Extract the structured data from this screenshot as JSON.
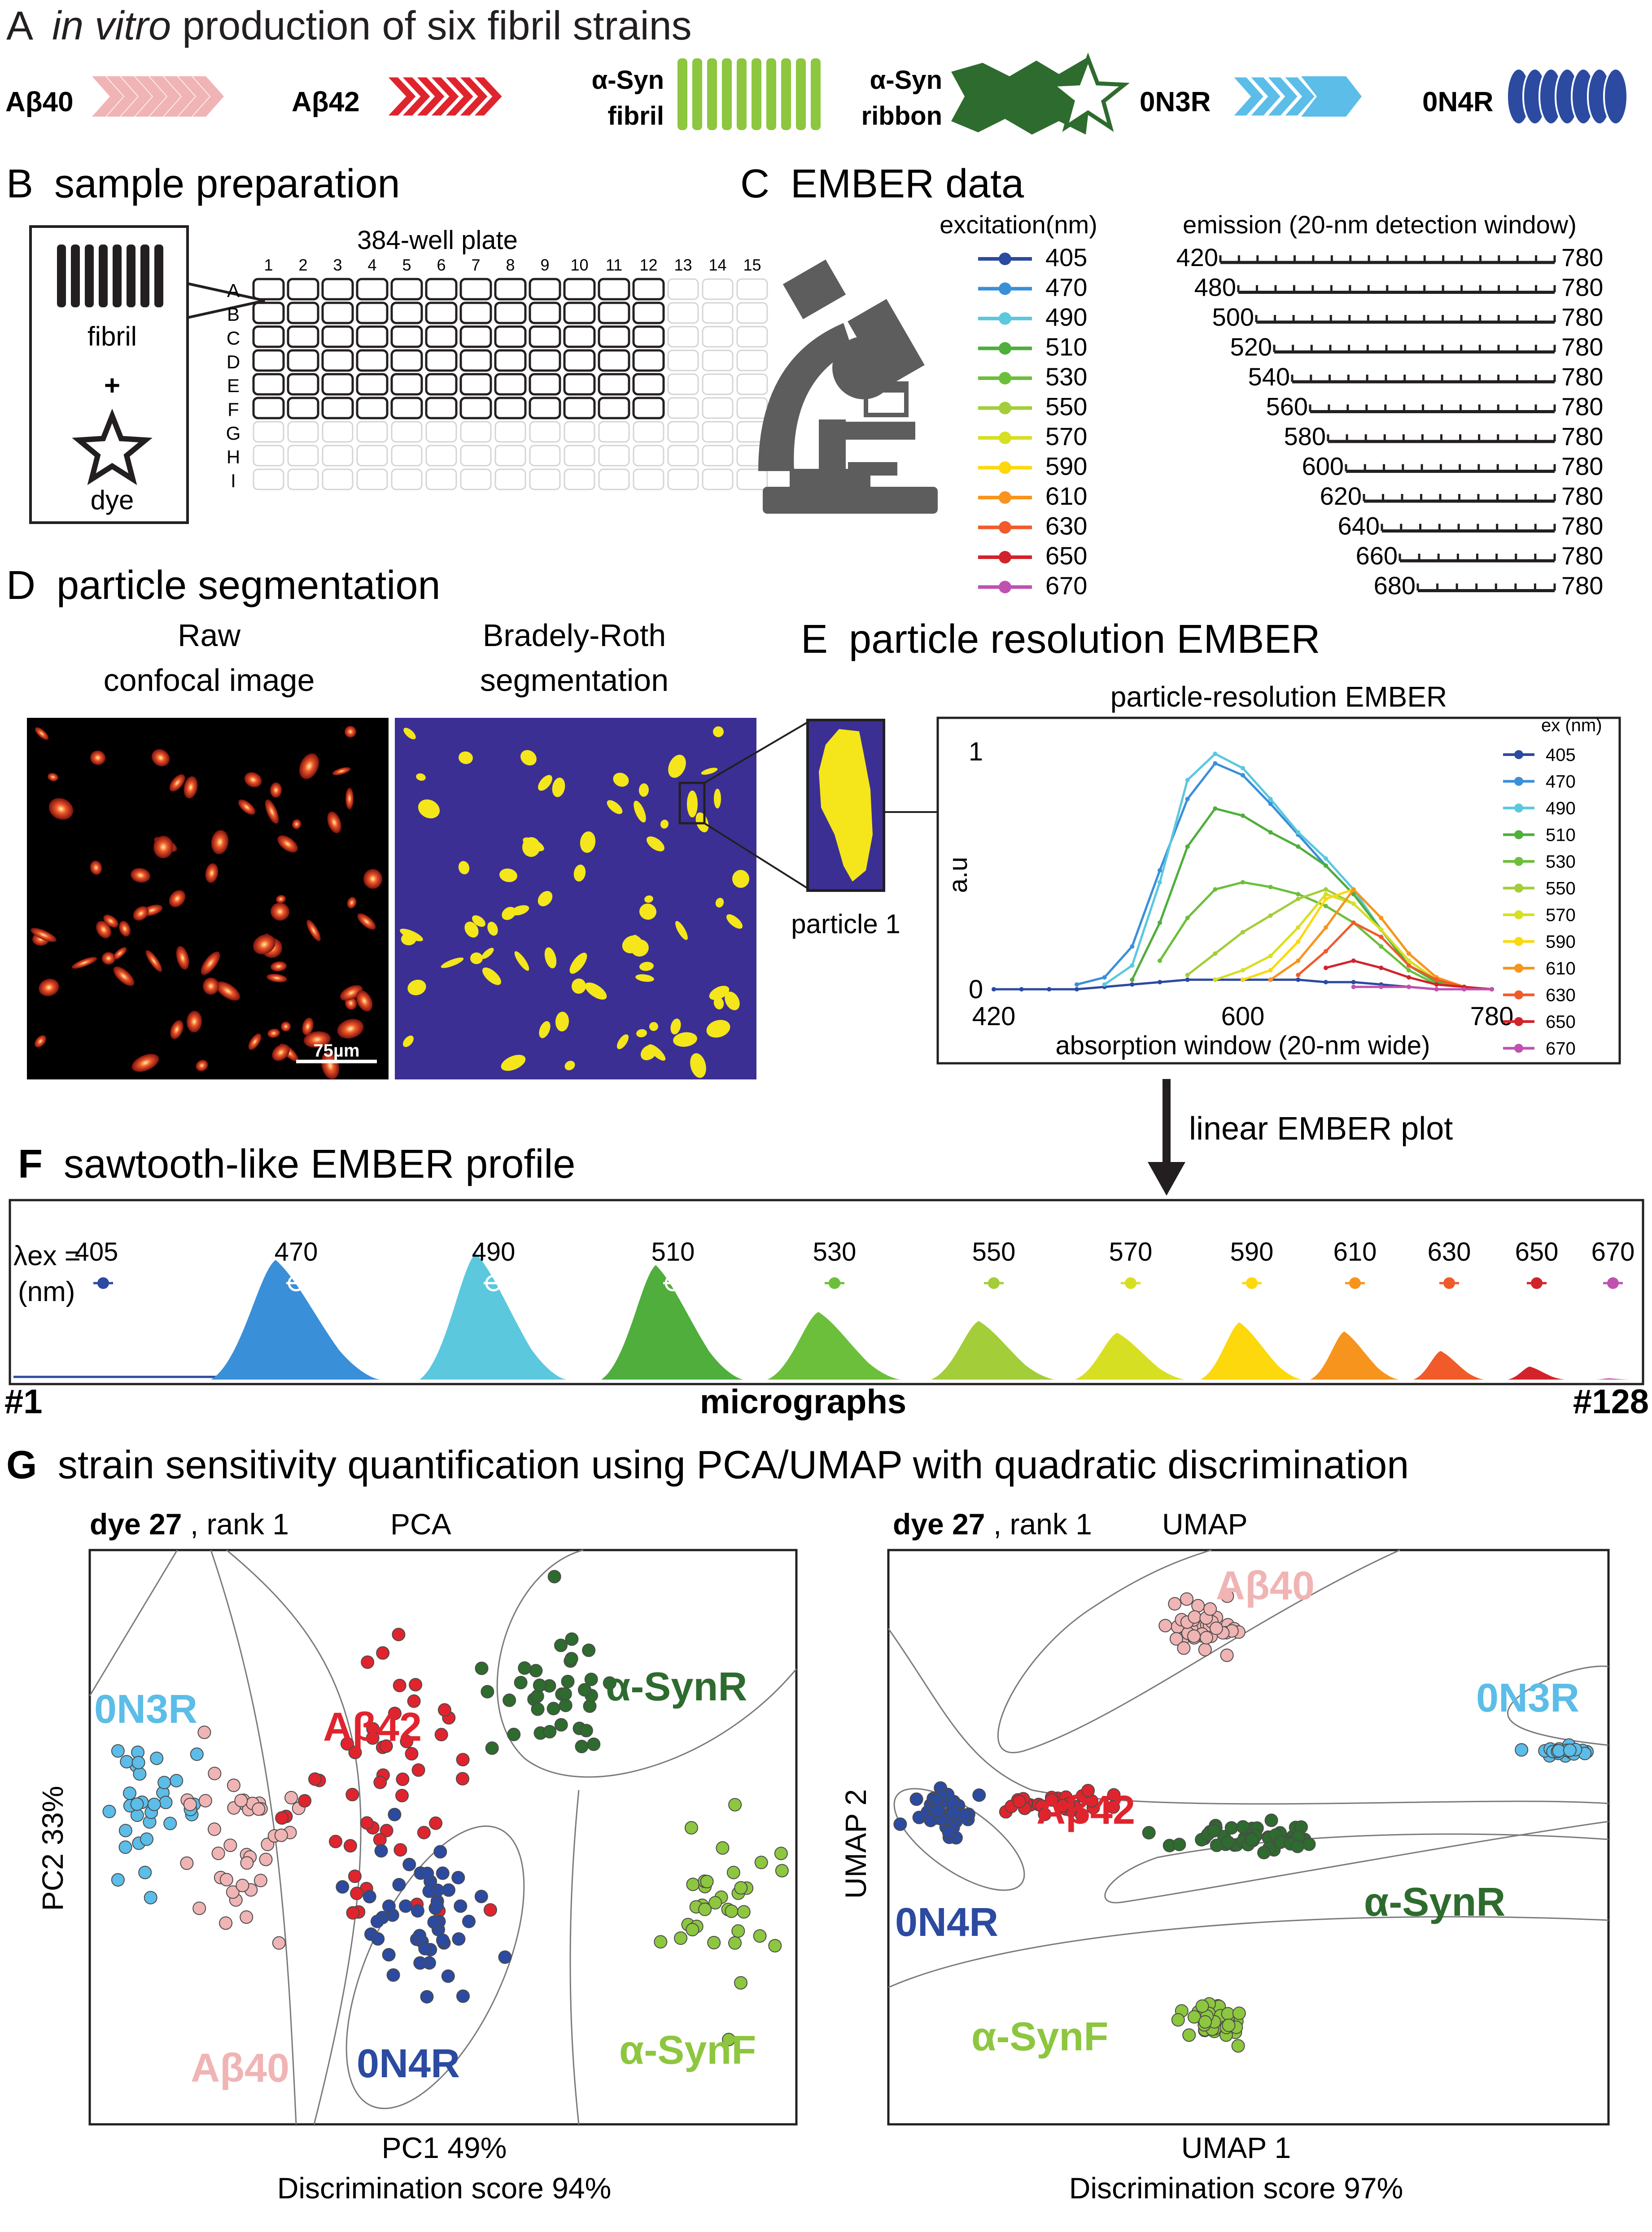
{
  "panelA": {
    "letter": "A",
    "title_italic": "in vitro",
    "title_rest": " production of six fibril strains",
    "strains": [
      {
        "label": "Aβ40",
        "color": "#f0b4b4"
      },
      {
        "label": "Aβ42",
        "color": "#e0242e"
      },
      {
        "label_line1": "α-Syn",
        "label_line2": "fibril",
        "color": "#8dc63f"
      },
      {
        "label_line1": "α-Syn",
        "label_line2": "ribbon",
        "color": "#2e6b2e"
      },
      {
        "label": "0N3R",
        "color": "#5bbde8"
      },
      {
        "label": "0N4R",
        "color": "#2b4aa0"
      }
    ]
  },
  "panelB": {
    "letter": "B",
    "title": "sample preparation",
    "plate_title": "384-well plate",
    "fibril_label": "fibril",
    "plus": "+",
    "dye_label": "dye",
    "columns": [
      "1",
      "2",
      "3",
      "4",
      "5",
      "6",
      "7",
      "8",
      "9",
      "10",
      "11",
      "12",
      "13",
      "14",
      "15"
    ],
    "rows": [
      "A",
      "B",
      "C",
      "D",
      "E",
      "F",
      "G",
      "H",
      "I"
    ]
  },
  "panelC": {
    "letter": "C",
    "title": "EMBER data",
    "excitation_header": "excitation(nm)",
    "emission_header": "emission (20-nm detection window)",
    "end_label": "780",
    "channels": [
      {
        "ex": "405",
        "em_start": "420",
        "color": "#2b4aa0"
      },
      {
        "ex": "470",
        "em_start": "480",
        "color": "#3a8fd9"
      },
      {
        "ex": "490",
        "em_start": "500",
        "color": "#5bc8de"
      },
      {
        "ex": "510",
        "em_start": "520",
        "color": "#4fae3c"
      },
      {
        "ex": "530",
        "em_start": "540",
        "color": "#6cbf3b"
      },
      {
        "ex": "550",
        "em_start": "560",
        "color": "#a3cd39"
      },
      {
        "ex": "570",
        "em_start": "580",
        "color": "#d7df23"
      },
      {
        "ex": "590",
        "em_start": "600",
        "color": "#fcd80c"
      },
      {
        "ex": "610",
        "em_start": "620",
        "color": "#f7941d"
      },
      {
        "ex": "630",
        "em_start": "640",
        "color": "#f15a29"
      },
      {
        "ex": "650",
        "em_start": "660",
        "color": "#d2232a"
      },
      {
        "ex": "670",
        "em_start": "680",
        "color": "#c051b0"
      }
    ]
  },
  "panelD": {
    "letter": "D",
    "title": "particle segmentation",
    "raw_line1": "Raw",
    "raw_line2": "confocal image",
    "seg_line1": "Bradely-Roth",
    "seg_line2": "segmentation",
    "scale_bar": "75µm",
    "particle_label": "particle 1"
  },
  "panelE": {
    "letter": "E",
    "title": "particle resolution EMBER",
    "chart_title": "particle-resolution EMBER",
    "legend_title": "ex (nm)",
    "arrow_label": "linear EMBER plot"
  },
  "panelF": {
    "letter": "F",
    "title": "sawtooth-like EMBER profile",
    "lambda_label": "λex =",
    "nm_label": "(nm)",
    "left_label": "#1",
    "center_label": "micrographs",
    "right_label": "#128"
  },
  "panelG": {
    "letter": "G",
    "title": "strain sensitivity quantification using PCA/UMAP with quadratic discrimination",
    "pca": {
      "dye": "dye 27",
      "rank": ", rank 1",
      "method": "PCA",
      "ylabel": "PC2 33%",
      "xlabel": "PC1 49%",
      "score": "Discrimination score 94%"
    },
    "umap": {
      "dye": "dye 27",
      "rank": ", rank 1",
      "method": "UMAP",
      "ylabel": "UMAP 2",
      "xlabel": "UMAP 1",
      "score": "Discrimination score 97%"
    }
  },
  "chart_data": [
    {
      "type": "line",
      "title": "particle-resolution EMBER",
      "xlabel": "absorption window (20-nm wide)",
      "ylabel": "a.u",
      "x_ticks": [
        420,
        600,
        780
      ],
      "y_ticks": [
        0,
        1
      ],
      "xlim": [
        420,
        780
      ],
      "ylim": [
        0,
        1
      ],
      "grid": false,
      "legend": "right",
      "legend_title": "ex (nm)",
      "series": [
        {
          "name": "405",
          "color": "#2b4aa0",
          "x": [
            420,
            440,
            460,
            480,
            500,
            520,
            540,
            560,
            580,
            600,
            620,
            640,
            660,
            680,
            700,
            720,
            740,
            760,
            780
          ],
          "y": [
            0,
            0,
            0,
            0,
            0.01,
            0.02,
            0.03,
            0.04,
            0.04,
            0.04,
            0.04,
            0.04,
            0.03,
            0.03,
            0.02,
            0.01,
            0,
            0,
            0
          ]
        },
        {
          "name": "470",
          "color": "#3a8fd9",
          "x": [
            480,
            500,
            520,
            540,
            560,
            580,
            600,
            620,
            640,
            660,
            680,
            700,
            720,
            740,
            760,
            780
          ],
          "y": [
            0.02,
            0.05,
            0.18,
            0.5,
            0.8,
            0.95,
            0.9,
            0.78,
            0.65,
            0.52,
            0.4,
            0.25,
            0.1,
            0.03,
            0.01,
            0
          ]
        },
        {
          "name": "490",
          "color": "#5bc8de",
          "x": [
            500,
            520,
            540,
            560,
            580,
            600,
            620,
            640,
            660,
            680,
            700,
            720,
            740,
            760,
            780
          ],
          "y": [
            0.02,
            0.1,
            0.45,
            0.88,
            0.99,
            0.93,
            0.8,
            0.66,
            0.55,
            0.42,
            0.25,
            0.1,
            0.03,
            0.01,
            0
          ]
        },
        {
          "name": "510",
          "color": "#4fae3c",
          "x": [
            520,
            540,
            560,
            580,
            600,
            620,
            640,
            660,
            680,
            700,
            720,
            740,
            760,
            780
          ],
          "y": [
            0.04,
            0.28,
            0.6,
            0.76,
            0.73,
            0.66,
            0.6,
            0.52,
            0.4,
            0.25,
            0.1,
            0.03,
            0.01,
            0
          ]
        },
        {
          "name": "530",
          "color": "#6cbf3b",
          "x": [
            540,
            560,
            580,
            600,
            620,
            640,
            660,
            680,
            700,
            720,
            740,
            760,
            780
          ],
          "y": [
            0.12,
            0.3,
            0.42,
            0.45,
            0.43,
            0.4,
            0.35,
            0.28,
            0.18,
            0.08,
            0.02,
            0.01,
            0
          ]
        },
        {
          "name": "550",
          "color": "#a3cd39",
          "x": [
            560,
            580,
            600,
            620,
            640,
            660,
            680,
            700,
            720,
            740,
            760,
            780
          ],
          "y": [
            0.06,
            0.15,
            0.24,
            0.31,
            0.38,
            0.42,
            0.36,
            0.25,
            0.12,
            0.04,
            0.01,
            0
          ]
        },
        {
          "name": "570",
          "color": "#d7df23",
          "x": [
            580,
            600,
            620,
            640,
            660,
            680,
            700,
            720,
            740,
            760,
            780
          ],
          "y": [
            0.04,
            0.08,
            0.14,
            0.26,
            0.4,
            0.36,
            0.25,
            0.12,
            0.04,
            0.01,
            0
          ]
        },
        {
          "name": "590",
          "color": "#fcd80c",
          "x": [
            600,
            620,
            640,
            660,
            680,
            700,
            720,
            740,
            760,
            780
          ],
          "y": [
            0.04,
            0.08,
            0.2,
            0.38,
            0.42,
            0.3,
            0.15,
            0.05,
            0.01,
            0
          ]
        },
        {
          "name": "610",
          "color": "#f7941d",
          "x": [
            620,
            640,
            660,
            680,
            700,
            720,
            740,
            760,
            780
          ],
          "y": [
            0.04,
            0.12,
            0.26,
            0.42,
            0.3,
            0.15,
            0.05,
            0.01,
            0
          ]
        },
        {
          "name": "630",
          "color": "#f15a29",
          "x": [
            640,
            660,
            680,
            700,
            720,
            740,
            760,
            780
          ],
          "y": [
            0.06,
            0.16,
            0.28,
            0.22,
            0.1,
            0.04,
            0.01,
            0
          ]
        },
        {
          "name": "650",
          "color": "#d2232a",
          "x": [
            660,
            680,
            700,
            720,
            740,
            760,
            780
          ],
          "y": [
            0.09,
            0.12,
            0.09,
            0.05,
            0.02,
            0.01,
            0
          ]
        },
        {
          "name": "670",
          "color": "#c051b0",
          "x": [
            680,
            700,
            720,
            740,
            760,
            780
          ],
          "y": [
            0.01,
            0.01,
            0.01,
            0,
            0,
            0
          ]
        }
      ]
    },
    {
      "type": "area",
      "title": "sawtooth-like EMBER profile",
      "xlabel": "micrographs",
      "x_start_label": "#1",
      "x_end_label": "#128",
      "series": [
        {
          "name": "405",
          "color": "#2b4aa0",
          "relative_peak": 0.03
        },
        {
          "name": "470",
          "color": "#3a8fd9",
          "relative_peak": 0.92
        },
        {
          "name": "490",
          "color": "#5bc8de",
          "relative_peak": 0.97
        },
        {
          "name": "510",
          "color": "#4fae3c",
          "relative_peak": 0.88
        },
        {
          "name": "530",
          "color": "#6cbf3b",
          "relative_peak": 0.52
        },
        {
          "name": "550",
          "color": "#a3cd39",
          "relative_peak": 0.45
        },
        {
          "name": "570",
          "color": "#d7df23",
          "relative_peak": 0.36
        },
        {
          "name": "590",
          "color": "#fcd80c",
          "relative_peak": 0.44
        },
        {
          "name": "610",
          "color": "#f7941d",
          "relative_peak": 0.37
        },
        {
          "name": "630",
          "color": "#f15a29",
          "relative_peak": 0.22
        },
        {
          "name": "650",
          "color": "#d2232a",
          "relative_peak": 0.1
        },
        {
          "name": "670",
          "color": "#c051b0",
          "relative_peak": 0.01
        }
      ]
    },
    {
      "type": "scatter",
      "title": "PCA",
      "xlabel": "PC1 49%",
      "ylabel": "PC2 33%",
      "series": [
        {
          "name": "0N3R",
          "color": "#5bbde8",
          "cx": 0.08,
          "cy": 0.42,
          "sx": 0.035,
          "sy": 0.08,
          "n": 32
        },
        {
          "name": "Aβ40",
          "color": "#f0b4b4",
          "cx": 0.22,
          "cy": 0.52,
          "sx": 0.05,
          "sy": 0.09,
          "n": 40
        },
        {
          "name": "Aβ42",
          "color": "#e0242e",
          "cx": 0.42,
          "cy": 0.42,
          "sx": 0.06,
          "sy": 0.12,
          "n": 48
        },
        {
          "name": "0N4R",
          "color": "#2b4aa0",
          "cx": 0.48,
          "cy": 0.65,
          "sx": 0.035,
          "sy": 0.07,
          "n": 48
        },
        {
          "name": "α-SynR",
          "color": "#2e6b2e",
          "cx": 0.66,
          "cy": 0.26,
          "sx": 0.04,
          "sy": 0.05,
          "n": 36
        },
        {
          "name": "α-SynF",
          "color": "#8dc63f",
          "cx": 0.9,
          "cy": 0.6,
          "sx": 0.04,
          "sy": 0.08,
          "n": 34
        }
      ]
    },
    {
      "type": "scatter",
      "title": "UMAP",
      "xlabel": "UMAP 1",
      "ylabel": "UMAP 2",
      "series": [
        {
          "name": "Aβ40",
          "color": "#f0b4b4",
          "cx": 0.43,
          "cy": 0.14,
          "sx": 0.025,
          "sy": 0.025,
          "n": 40
        },
        {
          "name": "0N3R",
          "color": "#5bbde8",
          "cx": 0.94,
          "cy": 0.35,
          "sx": 0.015,
          "sy": 0.006,
          "n": 24
        },
        {
          "name": "Aβ42",
          "color": "#e0242e",
          "cx": 0.22,
          "cy": 0.44,
          "sx": 0.06,
          "sy": 0.012,
          "n": 28
        },
        {
          "name": "0N4R",
          "color": "#2b4aa0",
          "cx": 0.08,
          "cy": 0.46,
          "sx": 0.02,
          "sy": 0.02,
          "n": 44
        },
        {
          "name": "α-SynR",
          "color": "#2e6b2e",
          "cx": 0.49,
          "cy": 0.5,
          "sx": 0.06,
          "sy": 0.012,
          "n": 48
        },
        {
          "name": "α-SynF",
          "color": "#8dc63f",
          "cx": 0.46,
          "cy": 0.82,
          "sx": 0.022,
          "sy": 0.02,
          "n": 40
        }
      ]
    }
  ]
}
